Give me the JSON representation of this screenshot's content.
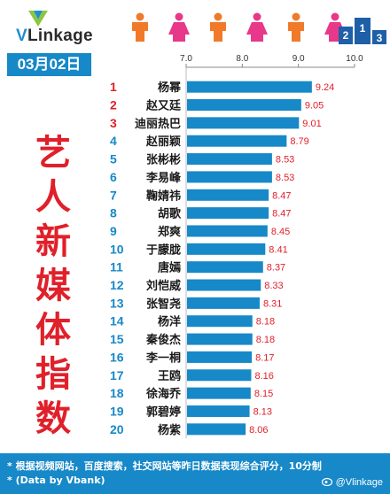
{
  "brand": {
    "logo_v": "V",
    "logo_rest": "Linkage"
  },
  "date_label": "03月02日",
  "vertical_title": [
    "艺",
    "人",
    "新",
    "媒",
    "体",
    "指",
    "数"
  ],
  "footer": {
    "line1": "* 根据视频网站，百度搜索，社交网站等昨日数据表现综合评分，10分制",
    "line2": "* (Data by Vbank)",
    "weibo": "@Vlinkage"
  },
  "colors": {
    "bar": "#1788c8",
    "rank_red": "#e0202a",
    "rank_blue": "#1788c8",
    "value": "#e0202a",
    "accent_blue": "#1788c8"
  },
  "icons": [
    "vlinkage-logo-icon",
    "people-icon-row",
    "podium-icon",
    "weibo-icon"
  ],
  "chart_data": {
    "type": "bar",
    "orientation": "horizontal",
    "x_ticks": [
      "7.0",
      "8.0",
      "9.0",
      "10.0"
    ],
    "xlim": [
      7.0,
      10.0
    ],
    "grid": false,
    "rows": [
      {
        "rank": "1",
        "name": "杨幂",
        "value": 9.24
      },
      {
        "rank": "2",
        "name": "赵又廷",
        "value": 9.05
      },
      {
        "rank": "3",
        "name": "迪丽热巴",
        "value": 9.01
      },
      {
        "rank": "4",
        "name": "赵丽颖",
        "value": 8.79
      },
      {
        "rank": "5",
        "name": "张彬彬",
        "value": 8.53
      },
      {
        "rank": "6",
        "name": "李易峰",
        "value": 8.53
      },
      {
        "rank": "7",
        "name": "鞠婧祎",
        "value": 8.47
      },
      {
        "rank": "8",
        "name": "胡歌",
        "value": 8.47
      },
      {
        "rank": "9",
        "name": "郑爽",
        "value": 8.45
      },
      {
        "rank": "10",
        "name": "于朦胧",
        "value": 8.41
      },
      {
        "rank": "11",
        "name": "唐嫣",
        "value": 8.37
      },
      {
        "rank": "12",
        "name": "刘恺威",
        "value": 8.33
      },
      {
        "rank": "13",
        "name": "张智尧",
        "value": 8.31
      },
      {
        "rank": "14",
        "name": "杨洋",
        "value": 8.18
      },
      {
        "rank": "15",
        "name": "秦俊杰",
        "value": 8.18
      },
      {
        "rank": "16",
        "name": "李一桐",
        "value": 8.17
      },
      {
        "rank": "17",
        "name": "王鸥",
        "value": 8.16
      },
      {
        "rank": "18",
        "name": "徐海乔",
        "value": 8.15
      },
      {
        "rank": "19",
        "name": "郭碧婷",
        "value": 8.13
      },
      {
        "rank": "20",
        "name": "杨紫",
        "value": 8.06
      }
    ]
  }
}
